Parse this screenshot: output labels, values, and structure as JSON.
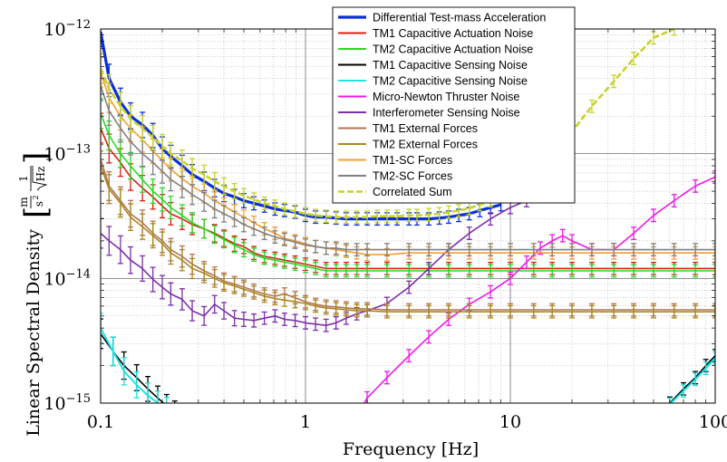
{
  "chart_data": {
    "type": "line",
    "title": "",
    "xlabel": "Frequency [Hz]",
    "ylabel": "Linear Spectral Density",
    "yunit": {
      "num1": "m",
      "den1": "s",
      "exp": "2",
      "num2": "1",
      "den2": "Hz"
    },
    "xscale": "log",
    "yscale": "log",
    "xlim": [
      0.1,
      100
    ],
    "ylim": [
      1e-15,
      1e-12
    ],
    "grid": true,
    "legend_position": "top-right",
    "x_ticks": [
      {
        "value": 0.1,
        "label": "0.1"
      },
      {
        "value": 1,
        "label": "1"
      },
      {
        "value": 10,
        "label": "10"
      },
      {
        "value": 100,
        "label": "100"
      }
    ],
    "y_ticks": [
      {
        "value": 1e-15,
        "base": "10",
        "exp": "−15"
      },
      {
        "value": 1e-14,
        "base": "10",
        "exp": "−14"
      },
      {
        "value": 1e-13,
        "base": "10",
        "exp": "−13"
      },
      {
        "value": 1e-12,
        "base": "10",
        "exp": "−12"
      }
    ],
    "series": [
      {
        "name": "Differential Test-mass Acceleration",
        "color": "#0a2fdb",
        "width": 3.2,
        "errorbars": true,
        "x": [
          0.1,
          0.11,
          0.125,
          0.14,
          0.16,
          0.18,
          0.2,
          0.22,
          0.25,
          0.28,
          0.32,
          0.36,
          0.4,
          0.45,
          0.5,
          0.56,
          0.63,
          0.71,
          0.79,
          0.89,
          1.0,
          1.12,
          1.26,
          1.41,
          1.58,
          1.78,
          2.0,
          2.24,
          2.5,
          2.8,
          3.2,
          3.5,
          4.0,
          4.5,
          5.0,
          5.6,
          6.3,
          7.1,
          8.0,
          9.0
        ],
        "y": [
          9.5e-13,
          4e-13,
          2.6e-13,
          2e-13,
          1.7e-13,
          1.4e-13,
          1.1e-13,
          9.5e-14,
          8e-14,
          6.8e-14,
          6e-14,
          5.3e-14,
          4.8e-14,
          4.5e-14,
          4.2e-14,
          4e-14,
          3.8e-14,
          3.6e-14,
          3.5e-14,
          3.4e-14,
          3.2e-14,
          3.1e-14,
          3.1e-14,
          3.05e-14,
          3e-14,
          3e-14,
          3e-14,
          3e-14,
          3e-14,
          3e-14,
          3e-14,
          3e-14,
          3e-14,
          3.05e-14,
          3.1e-14,
          3.2e-14,
          3.3e-14,
          3.5e-14,
          3.7e-14,
          3.9e-14
        ]
      },
      {
        "name": "TM1 Capacitive Actuation Noise",
        "color": "#dd1c12",
        "width": 1.6,
        "errorbars": true,
        "x": [
          0.1,
          0.11,
          0.125,
          0.14,
          0.16,
          0.18,
          0.2,
          0.22,
          0.25,
          0.28,
          0.32,
          0.36,
          0.4,
          0.45,
          0.5,
          0.56,
          0.63,
          0.71,
          0.79,
          0.89,
          1.0,
          1.12,
          1.26,
          1.41,
          1.58,
          1.78,
          2.0,
          2.5,
          3.2,
          4.0,
          5.0,
          6.3,
          8.0,
          10,
          13,
          16,
          20,
          25,
          32,
          40,
          50,
          63,
          80,
          100
        ],
        "y": [
          1.6e-13,
          1.1e-13,
          8.5e-14,
          6.5e-14,
          5.3e-14,
          4.5e-14,
          3.8e-14,
          3.3e-14,
          3e-14,
          2.7e-14,
          2.5e-14,
          2.3e-14,
          2.1e-14,
          1.9e-14,
          1.8e-14,
          1.6e-14,
          1.5e-14,
          1.45e-14,
          1.4e-14,
          1.35e-14,
          1.3e-14,
          1.25e-14,
          1.2e-14,
          1.2e-14,
          1.2e-14,
          1.2e-14,
          1.2e-14,
          1.2e-14,
          1.2e-14,
          1.2e-14,
          1.2e-14,
          1.2e-14,
          1.2e-14,
          1.2e-14,
          1.2e-14,
          1.2e-14,
          1.2e-14,
          1.2e-14,
          1.2e-14,
          1.2e-14,
          1.2e-14,
          1.2e-14,
          1.2e-14,
          1.2e-14
        ]
      },
      {
        "name": "TM2 Capacitive Actuation Noise",
        "color": "#2ad726",
        "width": 1.6,
        "errorbars": true,
        "x": [
          0.1,
          0.11,
          0.125,
          0.14,
          0.16,
          0.18,
          0.2,
          0.22,
          0.25,
          0.28,
          0.32,
          0.36,
          0.4,
          0.45,
          0.5,
          0.56,
          0.63,
          0.71,
          0.79,
          0.89,
          1.0,
          1.12,
          1.26,
          1.41,
          1.58,
          1.78,
          2.0,
          2.5,
          3.2,
          4.0,
          5.0,
          6.3,
          8.0,
          10,
          13,
          16,
          20,
          25,
          32,
          40,
          50,
          63,
          80,
          100
        ],
        "y": [
          2.1e-13,
          1.4e-13,
          1e-13,
          8e-14,
          6.2e-14,
          5e-14,
          4.3e-14,
          3.7e-14,
          3.2e-14,
          2.8e-14,
          2.5e-14,
          2.25e-14,
          2.05e-14,
          1.85e-14,
          1.7e-14,
          1.55e-14,
          1.45e-14,
          1.4e-14,
          1.35e-14,
          1.3e-14,
          1.25e-14,
          1.2e-14,
          1.15e-14,
          1.15e-14,
          1.15e-14,
          1.15e-14,
          1.15e-14,
          1.15e-14,
          1.15e-14,
          1.15e-14,
          1.15e-14,
          1.15e-14,
          1.15e-14,
          1.15e-14,
          1.15e-14,
          1.15e-14,
          1.15e-14,
          1.15e-14,
          1.15e-14,
          1.15e-14,
          1.15e-14,
          1.15e-14,
          1.15e-14,
          1.15e-14
        ]
      },
      {
        "name": "TM1 Capacitive Sensing Noise",
        "color": "#000000",
        "width": 1.6,
        "errorbars": true,
        "x": [
          0.1,
          0.115,
          0.13,
          0.15,
          0.17,
          0.19,
          0.21,
          0.23,
          50,
          60,
          70,
          80,
          90,
          100
        ],
        "y": [
          3.6e-15,
          2.6e-15,
          2e-15,
          1.6e-15,
          1.3e-15,
          1.1e-15,
          9.5e-16,
          8.5e-16,
          8e-16,
          1e-15,
          1.3e-15,
          1.6e-15,
          2e-15,
          2.4e-15
        ]
      },
      {
        "name": "TM2 Capacitive Sensing Noise",
        "color": "#1fe3e3",
        "width": 2.0,
        "errorbars": true,
        "x": [
          0.1,
          0.115,
          0.13,
          0.15,
          0.17,
          0.19,
          0.21,
          0.23,
          50,
          60,
          70,
          80,
          90,
          100
        ],
        "y": [
          4e-15,
          2.6e-15,
          1.8e-15,
          1.4e-15,
          1.15e-15,
          1e-15,
          9e-16,
          8e-16,
          8e-16,
          9.8e-16,
          1.25e-15,
          1.55e-15,
          1.9e-15,
          2.3e-15
        ]
      },
      {
        "name": "Micro-Newton Thruster Noise",
        "color": "#f018e8",
        "width": 1.6,
        "errorbars": true,
        "x": [
          1.8,
          2.0,
          2.5,
          3.2,
          4.0,
          5.0,
          6.3,
          8.0,
          10,
          12,
          14,
          16,
          18,
          20,
          25,
          32,
          40,
          50,
          63,
          80,
          100
        ],
        "y": [
          8e-16,
          1.1e-15,
          1.6e-15,
          2.4e-15,
          3.4e-15,
          4.7e-15,
          6.2e-15,
          7.8e-15,
          1e-14,
          1.35e-14,
          1.75e-14,
          2e-14,
          2.2e-14,
          2e-14,
          1.7e-14,
          1.7e-14,
          2.3e-14,
          3.2e-14,
          4.2e-14,
          5.5e-14,
          6.5e-14
        ]
      },
      {
        "name": "Interferometer Sensing Noise",
        "color": "#7b2fa8",
        "width": 1.6,
        "errorbars": true,
        "x": [
          0.1,
          0.11,
          0.125,
          0.14,
          0.16,
          0.18,
          0.2,
          0.22,
          0.25,
          0.28,
          0.32,
          0.36,
          0.4,
          0.45,
          0.5,
          0.56,
          0.63,
          0.71,
          0.79,
          0.89,
          1.0,
          1.12,
          1.26,
          1.41,
          1.58,
          1.78,
          2.0,
          2.5,
          3.2,
          4.0,
          5.0,
          6.3,
          8.0,
          10,
          12
        ],
        "y": [
          2.3e-14,
          2e-14,
          1.7e-14,
          1.4e-14,
          1.2e-14,
          9.8e-15,
          8.5e-15,
          7.5e-15,
          6.8e-15,
          5.5e-15,
          5e-15,
          6.2e-15,
          5.5e-15,
          4.8e-15,
          4.7e-15,
          4.6e-15,
          4.8e-15,
          5e-15,
          4.7e-15,
          4.6e-15,
          4.4e-15,
          4.3e-15,
          4.2e-15,
          4.4e-15,
          4.8e-15,
          5.2e-15,
          5.5e-15,
          6.3e-15,
          8.5e-15,
          1.2e-14,
          1.7e-14,
          2.3e-14,
          3e-14,
          3.7e-14,
          4.2e-14
        ]
      },
      {
        "name": "TM1 External Forces",
        "color": "#b4735a",
        "width": 1.6,
        "errorbars": true,
        "x": [
          0.1,
          0.11,
          0.125,
          0.14,
          0.16,
          0.18,
          0.2,
          0.22,
          0.25,
          0.28,
          0.32,
          0.36,
          0.4,
          0.45,
          0.5,
          0.56,
          0.63,
          0.71,
          0.79,
          0.89,
          1.0,
          1.12,
          1.26,
          1.41,
          1.58,
          1.78,
          2.0,
          2.5,
          3.2,
          4.0,
          5.0,
          6.3,
          8.0,
          10,
          13,
          16,
          20,
          25,
          32,
          40,
          50,
          63,
          80,
          100
        ],
        "y": [
          9e-14,
          5.5e-14,
          4.2e-14,
          3.3e-14,
          2.8e-14,
          2.3e-14,
          2e-14,
          1.7e-14,
          1.5e-14,
          1.3e-14,
          1.15e-14,
          1.05e-14,
          9.5e-15,
          9e-15,
          8.5e-15,
          8e-15,
          7.5e-15,
          7.2e-15,
          7.5e-15,
          7e-15,
          6.5e-15,
          6.2e-15,
          6e-15,
          5.9e-15,
          5.8e-15,
          5.7e-15,
          5.7e-15,
          5.6e-15,
          5.6e-15,
          5.6e-15,
          5.6e-15,
          5.6e-15,
          5.6e-15,
          5.6e-15,
          5.6e-15,
          5.6e-15,
          5.6e-15,
          5.6e-15,
          5.6e-15,
          5.6e-15,
          5.6e-15,
          5.6e-15,
          5.6e-15,
          5.6e-15
        ]
      },
      {
        "name": "TM2 External Forces",
        "color": "#a8881e",
        "width": 1.6,
        "errorbars": true,
        "x": [
          0.1,
          0.11,
          0.125,
          0.14,
          0.16,
          0.18,
          0.2,
          0.22,
          0.25,
          0.28,
          0.32,
          0.36,
          0.4,
          0.45,
          0.5,
          0.56,
          0.63,
          0.71,
          0.79,
          0.89,
          1.0,
          1.12,
          1.26,
          1.41,
          1.58,
          1.78,
          2.0,
          2.5,
          3.2,
          4.0,
          5.0,
          6.3,
          8.0,
          10,
          13,
          16,
          20,
          25,
          32,
          40,
          50,
          63,
          80,
          100
        ],
        "y": [
          8e-14,
          5.2e-14,
          4e-14,
          3.1e-14,
          2.6e-14,
          2.2e-14,
          1.9e-14,
          1.6e-14,
          1.4e-14,
          1.2e-14,
          1.1e-14,
          1e-14,
          9.2e-15,
          8.7e-15,
          8.2e-15,
          7.7e-15,
          7.2e-15,
          6.9e-15,
          6.7e-15,
          6.5e-15,
          6.3e-15,
          6e-15,
          5.8e-15,
          5.7e-15,
          5.6e-15,
          5.5e-15,
          5.5e-15,
          5.4e-15,
          5.4e-15,
          5.4e-15,
          5.4e-15,
          5.4e-15,
          5.4e-15,
          5.4e-15,
          5.4e-15,
          5.4e-15,
          5.4e-15,
          5.4e-15,
          5.4e-15,
          5.4e-15,
          5.4e-15,
          5.4e-15,
          5.4e-15,
          5.4e-15
        ]
      },
      {
        "name": "TM1-SC Forces",
        "color": "#f39c2e",
        "width": 1.6,
        "errorbars": true,
        "x": [
          0.1,
          0.11,
          0.125,
          0.14,
          0.16,
          0.18,
          0.2,
          0.22,
          0.25,
          0.28,
          0.32,
          0.36,
          0.4,
          0.45,
          0.5,
          0.56,
          0.63,
          0.71,
          0.79,
          0.89,
          1.0,
          1.12,
          1.26,
          1.41,
          1.58,
          1.78,
          2.0,
          2.5,
          3.2,
          4.0,
          5.0,
          6.3,
          8.0,
          10,
          13,
          16,
          20,
          25,
          32,
          40,
          50,
          63,
          80,
          100
        ],
        "y": [
          4.5e-13,
          2.8e-13,
          2e-13,
          1.6e-13,
          1.3e-13,
          1.05e-13,
          8.8e-14,
          7.5e-14,
          6.3e-14,
          5.5e-14,
          4.8e-14,
          4.2e-14,
          3.8e-14,
          3.4e-14,
          3.1e-14,
          2.8e-14,
          2.5e-14,
          2.3e-14,
          2.1e-14,
          2e-14,
          1.9e-14,
          1.8e-14,
          1.75e-14,
          1.7e-14,
          1.65e-14,
          1.6e-14,
          1.55e-14,
          1.55e-14,
          1.6e-14,
          1.6e-14,
          1.6e-14,
          1.6e-14,
          1.6e-14,
          1.6e-14,
          1.6e-14,
          1.6e-14,
          1.6e-14,
          1.6e-14,
          1.6e-14,
          1.6e-14,
          1.6e-14,
          1.6e-14,
          1.6e-14,
          1.6e-14
        ]
      },
      {
        "name": "TM2-SC Forces",
        "color": "#808080",
        "width": 1.6,
        "errorbars": true,
        "x": [
          0.1,
          0.11,
          0.125,
          0.14,
          0.16,
          0.18,
          0.2,
          0.22,
          0.25,
          0.28,
          0.32,
          0.36,
          0.4,
          0.45,
          0.5,
          0.56,
          0.63,
          0.71,
          0.79,
          0.89,
          1.0,
          1.12,
          1.26,
          1.41,
          1.58,
          1.78,
          2.0,
          2.5,
          3.2,
          4.0,
          5.0,
          6.3,
          8.0,
          10,
          13,
          16,
          20,
          25,
          32,
          40,
          50,
          63,
          80,
          100
        ],
        "y": [
          3.5e-13,
          2.2e-13,
          1.6e-13,
          1.25e-13,
          1e-13,
          8.5e-14,
          7.2e-14,
          6.2e-14,
          5.4e-14,
          4.7e-14,
          4.1e-14,
          3.6e-14,
          3.3e-14,
          3e-14,
          2.7e-14,
          2.5e-14,
          2.3e-14,
          2.15e-14,
          2.05e-14,
          1.95e-14,
          1.85e-14,
          1.8e-14,
          1.75e-14,
          1.75e-14,
          1.7e-14,
          1.7e-14,
          1.7e-14,
          1.7e-14,
          1.7e-14,
          1.7e-14,
          1.7e-14,
          1.7e-14,
          1.7e-14,
          1.7e-14,
          1.7e-14,
          1.7e-14,
          1.7e-14,
          1.7e-14,
          1.7e-14,
          1.7e-14,
          1.7e-14,
          1.7e-14,
          1.7e-14,
          1.7e-14
        ]
      },
      {
        "name": "Correlated Sum",
        "color": "#c8d22d",
        "width": 2.6,
        "dashed": true,
        "errorbars": true,
        "x": [
          0.1,
          0.11,
          0.125,
          0.14,
          0.16,
          0.18,
          0.2,
          0.22,
          0.25,
          0.28,
          0.32,
          0.36,
          0.4,
          0.45,
          0.5,
          0.56,
          0.63,
          0.71,
          0.79,
          0.89,
          1.0,
          1.12,
          1.26,
          1.41,
          1.58,
          1.78,
          2.0,
          2.24,
          2.5,
          2.8,
          3.2,
          3.5,
          4.0,
          4.5,
          5.0,
          5.6,
          6.3,
          7.1,
          8.0,
          9.0,
          10,
          12,
          14,
          16,
          18,
          20,
          25,
          32,
          40,
          50,
          63
        ],
        "y": [
          4.8e-13,
          3.3e-13,
          2.4e-13,
          1.9e-13,
          1.6e-13,
          1.35e-13,
          1.15e-13,
          1e-13,
          8.8e-14,
          7.6e-14,
          6.8e-14,
          6e-14,
          5.5e-14,
          5e-14,
          4.6e-14,
          4.3e-14,
          4e-14,
          3.8e-14,
          3.6e-14,
          3.45e-14,
          3.3e-14,
          3.2e-14,
          3.15e-14,
          3.1e-14,
          3.1e-14,
          3.1e-14,
          3.1e-14,
          3.15e-14,
          3.15e-14,
          3.15e-14,
          3.2e-14,
          3.2e-14,
          3.25e-14,
          3.3e-14,
          3.4e-14,
          3.5e-14,
          3.65e-14,
          3.9e-14,
          4.2e-14,
          4.6e-14,
          5.2e-14,
          6.5e-14,
          8e-14,
          1e-13,
          1.25e-13,
          1.5e-13,
          2.4e-13,
          3.8e-13,
          5.8e-13,
          8.5e-13,
          1e-12
        ]
      }
    ]
  }
}
